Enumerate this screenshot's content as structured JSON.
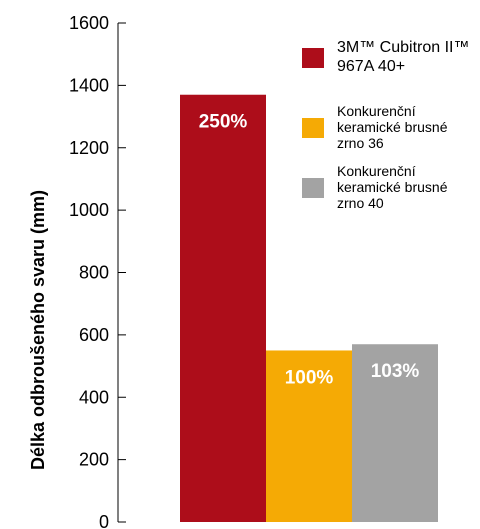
{
  "chart_data": {
    "type": "bar",
    "ylabel": "Délka odbroušeného svaru (mm)",
    "xlabel": "",
    "ylim": [
      0,
      1600
    ],
    "yticks": [
      0,
      200,
      400,
      600,
      800,
      1000,
      1200,
      1400,
      1600
    ],
    "grid": false,
    "legend_position": "top-right",
    "categories": [
      "3M™ Cubitron II™ 967A 40+",
      "Konkurenční keramické brusné zrno 36",
      "Konkurenční keramické brusné zrno 40"
    ],
    "series": [
      {
        "values": [
          1370,
          550,
          570
        ],
        "labels": [
          "250%",
          "100%",
          "103%"
        ],
        "colors": [
          "#ad0d1a",
          "#f5aa05",
          "#a3a3a3"
        ]
      }
    ],
    "legend": [
      {
        "lines": [
          "3M™ Cubitron II™",
          "967A 40+"
        ],
        "color": "#ad0d1a"
      },
      {
        "lines": [
          "Konkurenční",
          "keramické brusné",
          "zrno 36"
        ],
        "color": "#f5aa05"
      },
      {
        "lines": [
          "Konkurenční",
          "keramické brusné",
          "zrno 40"
        ],
        "color": "#a3a3a3"
      }
    ]
  }
}
